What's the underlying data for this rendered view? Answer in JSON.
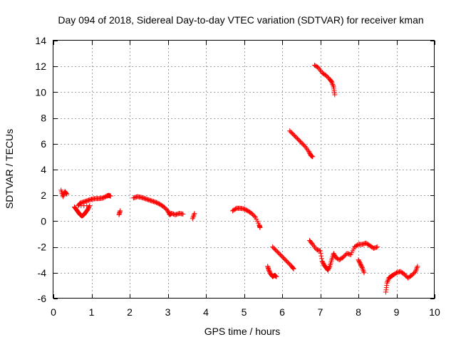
{
  "chart_data": {
    "type": "scatter",
    "title": "Day 094 of 2018, Sidereal Day-to-day VTEC variation (SDTVAR) for receiver kman",
    "xlabel": "GPS time / hours",
    "ylabel": "SDTVAR / TECUs",
    "xlim": [
      0,
      10
    ],
    "ylim": [
      -6,
      14
    ],
    "xticks": [
      0,
      1,
      2,
      3,
      4,
      5,
      6,
      7,
      8,
      9,
      10
    ],
    "yticks": [
      -6,
      -4,
      -2,
      0,
      2,
      4,
      6,
      8,
      10,
      12,
      14
    ],
    "grid": true,
    "marker": "+",
    "color": "#ff0000",
    "series": [
      {
        "name": "SDTVAR",
        "segments": [
          [
            [
              0.2,
              2.4
            ],
            [
              0.25,
              1.9
            ],
            [
              0.3,
              2.3
            ],
            [
              0.35,
              2.1
            ]
          ],
          [
            [
              0.55,
              1.1
            ],
            [
              0.6,
              0.9
            ],
            [
              0.65,
              0.7
            ],
            [
              0.7,
              0.5
            ],
            [
              0.75,
              0.4
            ],
            [
              0.8,
              0.5
            ],
            [
              0.85,
              0.7
            ],
            [
              0.9,
              0.9
            ],
            [
              0.95,
              1.2
            ],
            [
              0.65,
              1.2
            ],
            [
              0.7,
              1.4
            ],
            [
              0.8,
              1.5
            ],
            [
              0.9,
              1.6
            ],
            [
              1.0,
              1.7
            ],
            [
              1.1,
              1.75
            ],
            [
              1.2,
              1.75
            ],
            [
              1.3,
              1.8
            ],
            [
              1.4,
              1.95
            ],
            [
              1.45,
              2.0
            ],
            [
              1.5,
              1.95
            ]
          ],
          [
            [
              1.72,
              0.5
            ],
            [
              1.75,
              0.8
            ]
          ],
          [
            [
              2.1,
              1.8
            ],
            [
              2.2,
              1.9
            ],
            [
              2.3,
              1.85
            ],
            [
              2.4,
              1.75
            ],
            [
              2.5,
              1.65
            ],
            [
              2.6,
              1.55
            ],
            [
              2.7,
              1.45
            ],
            [
              2.8,
              1.3
            ],
            [
              2.9,
              1.1
            ],
            [
              3.0,
              0.8
            ],
            [
              3.05,
              0.5
            ],
            [
              3.1,
              0.6
            ],
            [
              3.2,
              0.5
            ],
            [
              3.3,
              0.6
            ],
            [
              3.4,
              0.55
            ]
          ],
          [
            [
              3.65,
              0.2
            ],
            [
              3.7,
              0.6
            ]
          ],
          [
            [
              4.7,
              0.8
            ],
            [
              4.8,
              1.0
            ],
            [
              4.9,
              1.0
            ],
            [
              5.0,
              0.95
            ],
            [
              5.1,
              0.8
            ],
            [
              5.2,
              0.6
            ],
            [
              5.3,
              0.3
            ],
            [
              5.4,
              -0.3
            ],
            [
              5.42,
              -0.5
            ]
          ],
          [
            [
              5.62,
              -3.5
            ],
            [
              5.65,
              -3.8
            ],
            [
              5.7,
              -4.1
            ],
            [
              5.75,
              -4.3
            ],
            [
              5.8,
              -4.2
            ],
            [
              5.85,
              -4.3
            ]
          ],
          [
            [
              5.75,
              -2.0
            ],
            [
              5.85,
              -2.3
            ],
            [
              5.95,
              -2.6
            ],
            [
              6.05,
              -2.9
            ],
            [
              6.15,
              -3.2
            ],
            [
              6.25,
              -3.5
            ],
            [
              6.3,
              -3.7
            ]
          ],
          [
            [
              6.2,
              7.0
            ],
            [
              6.3,
              6.7
            ],
            [
              6.4,
              6.4
            ],
            [
              6.5,
              6.1
            ],
            [
              6.6,
              5.8
            ],
            [
              6.7,
              5.4
            ],
            [
              6.75,
              5.1
            ],
            [
              6.8,
              5.0
            ]
          ],
          [
            [
              6.85,
              12.1
            ],
            [
              6.95,
              11.9
            ],
            [
              7.05,
              11.5
            ],
            [
              7.15,
              11.3
            ],
            [
              7.25,
              11.0
            ],
            [
              7.3,
              10.8
            ],
            [
              7.35,
              10.4
            ],
            [
              7.38,
              9.8
            ]
          ],
          [
            [
              6.72,
              -1.5
            ],
            [
              6.8,
              -1.8
            ],
            [
              6.9,
              -2.2
            ],
            [
              7.0,
              -2.3
            ],
            [
              7.05,
              -3.1
            ],
            [
              7.1,
              -3.4
            ],
            [
              7.15,
              -3.6
            ],
            [
              7.2,
              -3.8
            ],
            [
              7.25,
              -3.5
            ],
            [
              7.3,
              -3.0
            ],
            [
              7.35,
              -2.5
            ],
            [
              7.4,
              -2.8
            ],
            [
              7.5,
              -3.0
            ],
            [
              7.6,
              -2.8
            ],
            [
              7.7,
              -2.5
            ],
            [
              7.8,
              -2.6
            ],
            [
              7.9,
              -2.0
            ],
            [
              8.0,
              -1.8
            ],
            [
              8.1,
              -1.8
            ],
            [
              8.2,
              -1.7
            ],
            [
              8.3,
              -1.9
            ],
            [
              8.4,
              -2.1
            ],
            [
              8.5,
              -2.0
            ]
          ],
          [
            [
              8.0,
              -3.0
            ],
            [
              8.05,
              -3.3
            ],
            [
              8.1,
              -3.6
            ],
            [
              8.15,
              -4.0
            ]
          ],
          [
            [
              8.72,
              -5.5
            ],
            [
              8.75,
              -4.8
            ],
            [
              8.8,
              -4.4
            ],
            [
              8.85,
              -4.3
            ],
            [
              8.9,
              -4.2
            ],
            [
              9.0,
              -4.0
            ],
            [
              9.1,
              -3.9
            ],
            [
              9.2,
              -4.1
            ],
            [
              9.3,
              -4.4
            ],
            [
              9.4,
              -4.2
            ],
            [
              9.5,
              -3.9
            ],
            [
              9.55,
              -3.5
            ]
          ]
        ]
      }
    ]
  }
}
